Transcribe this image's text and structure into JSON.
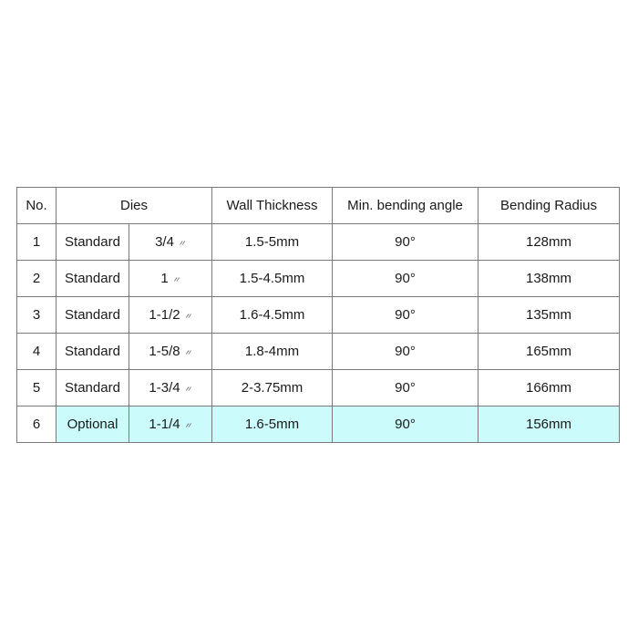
{
  "headers": {
    "no": "No.",
    "dies": "Dies",
    "wall": "Wall Thickness",
    "angle": "Min. bending angle",
    "radius": "Bending Radius"
  },
  "inch_mark": "〃",
  "highlight_color": "#ccfbfc",
  "rows": [
    {
      "no": "1",
      "type": "Standard",
      "size": "3/4",
      "wall": "1.5-5mm",
      "angle": "90°",
      "radius": "128mm"
    },
    {
      "no": "2",
      "type": "Standard",
      "size": "1",
      "wall": "1.5-4.5mm",
      "angle": "90°",
      "radius": "138mm"
    },
    {
      "no": "3",
      "type": "Standard",
      "size": "1-1/2",
      "wall": "1.6-4.5mm",
      "angle": "90°",
      "radius": "135mm"
    },
    {
      "no": "4",
      "type": "Standard",
      "size": "1-5/8",
      "wall": "1.8-4mm",
      "angle": "90°",
      "radius": "165mm"
    },
    {
      "no": "5",
      "type": "Standard",
      "size": "1-3/4",
      "wall": "2-3.75mm",
      "angle": "90°",
      "radius": "166mm"
    },
    {
      "no": "6",
      "type": "Optional",
      "size": "1-1/4",
      "wall": "1.6-5mm",
      "angle": "90°",
      "radius": "156mm",
      "highlight": true
    }
  ]
}
